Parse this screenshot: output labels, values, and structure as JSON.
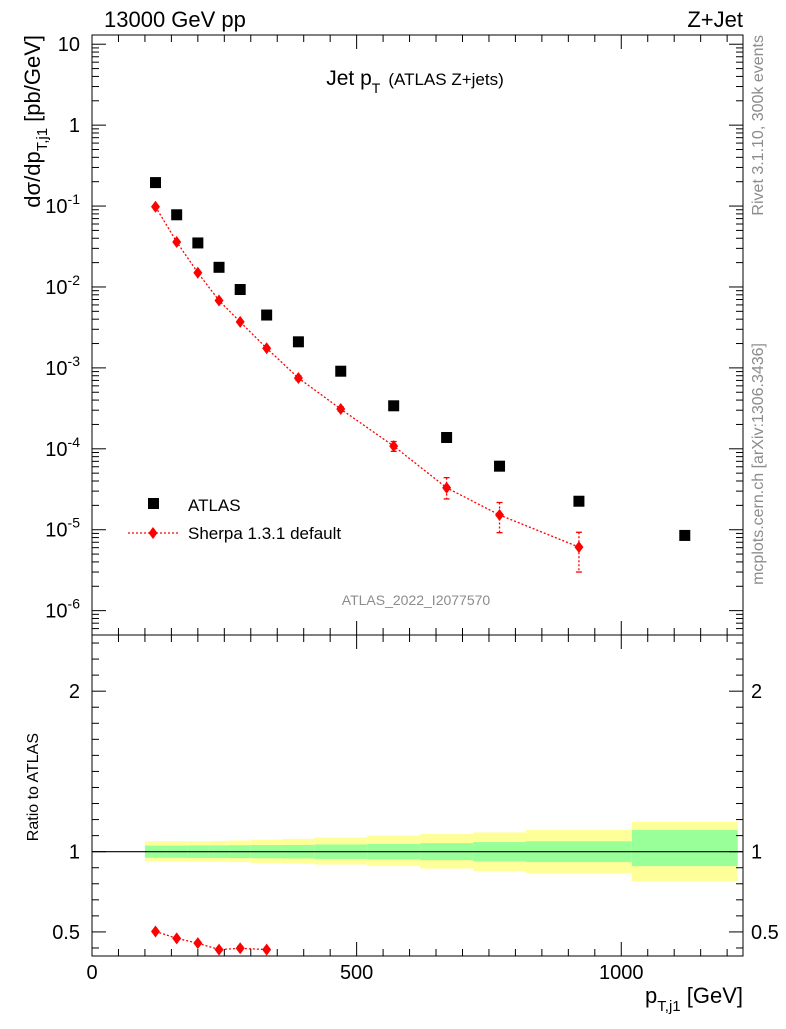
{
  "header": {
    "left": "13000 GeV pp",
    "right": "Z+Jet"
  },
  "side_labels": {
    "rivet": "Rivet 3.1.10,  300k events",
    "mcplots": "mcplots.cern.ch [arXiv:1306.3436]"
  },
  "watermark": "ATLAS_2022_I2077570",
  "colors": {
    "data": "#000000",
    "mc": "#ff0000",
    "band_inner": "#99ff99",
    "band_outer": "#ffff99",
    "side_text": "#8c8c8c"
  },
  "chart_data": [
    {
      "type": "scatter",
      "panel": "main",
      "title_main": "Jet p",
      "title_sub": "T",
      "title_suffix": "(ATLAS Z+jets)",
      "ylabel": "dσ/dp",
      "ylabel_sub": "T,j1",
      "ylabel_suffix": " [pb/GeV]",
      "yscale": "log",
      "ylim": [
        5e-07,
        13
      ],
      "xlim": [
        0,
        1230
      ],
      "y_tick_labels": [
        {
          "base": "10",
          "exp": "-6",
          "value": 1e-06
        },
        {
          "base": "10",
          "exp": "-5",
          "value": 1e-05
        },
        {
          "base": "10",
          "exp": "-4",
          "value": 0.0001
        },
        {
          "base": "10",
          "exp": "-3",
          "value": 0.001
        },
        {
          "base": "10",
          "exp": "-2",
          "value": 0.01
        },
        {
          "base": "10",
          "exp": "-1",
          "value": 0.1
        },
        {
          "base": "1",
          "exp": "",
          "value": 1
        },
        {
          "base": "10",
          "exp": "",
          "value": 10
        }
      ],
      "legend_position": "bottom-left",
      "series": [
        {
          "name": "ATLAS",
          "marker": "square",
          "color": "#000000",
          "x": [
            120,
            160,
            200,
            240,
            280,
            330,
            390,
            470,
            570,
            670,
            770,
            920,
            1120
          ],
          "y": [
            0.195,
            0.078,
            0.035,
            0.0175,
            0.0093,
            0.0045,
            0.0021,
            0.00091,
            0.00034,
            0.000138,
            6.1e-05,
            2.25e-05,
            8.5e-06
          ]
        },
        {
          "name": "Sherpa 1.3.1 default",
          "marker": "diamond",
          "line": "dotted",
          "color": "#ff0000",
          "x": [
            120,
            160,
            200,
            240,
            280,
            330,
            390,
            470,
            570,
            670,
            770,
            920
          ],
          "y": [
            0.098,
            0.036,
            0.015,
            0.0068,
            0.0037,
            0.00175,
            0.00075,
            0.00031,
            0.000108,
            3.3e-05,
            1.52e-05,
            6.1e-06
          ],
          "err_low": [
            0.0,
            0.0,
            0.0,
            0.0,
            0.0,
            0.0,
            5e-05,
            2e-05,
            1.5e-05,
            9e-06,
            6e-06,
            3.1e-06
          ],
          "err_high": [
            0.0,
            0.0,
            0.0,
            0.0,
            0.0,
            0.0,
            5e-05,
            2e-05,
            1.5e-05,
            1.1e-05,
            6.5e-06,
            3.2e-06
          ]
        }
      ]
    },
    {
      "type": "scatter",
      "panel": "ratio",
      "ylabel": "Ratio to ATLAS",
      "xlabel": "p",
      "xlabel_sub": "T,j1",
      "xlabel_suffix": " [GeV]",
      "xlim": [
        0,
        1230
      ],
      "ylim": [
        0.35,
        2.35
      ],
      "x_ticks": [
        0,
        500,
        1000
      ],
      "y_ticks": [
        0.5,
        1,
        2
      ],
      "reference_line": 1,
      "uncertainty_band": {
        "edges": [
          100,
          140,
          180,
          220,
          260,
          300,
          360,
          420,
          520,
          620,
          720,
          820,
          1020,
          1220
        ],
        "inner_low": [
          0.962,
          0.962,
          0.961,
          0.961,
          0.96,
          0.959,
          0.958,
          0.955,
          0.952,
          0.947,
          0.94,
          0.935,
          0.91
        ],
        "inner_high": [
          1.038,
          1.038,
          1.039,
          1.039,
          1.04,
          1.041,
          1.042,
          1.045,
          1.048,
          1.053,
          1.06,
          1.065,
          1.135
        ],
        "outer_low": [
          0.94,
          0.94,
          0.938,
          0.937,
          0.935,
          0.93,
          0.925,
          0.92,
          0.91,
          0.895,
          0.88,
          0.865,
          0.815
        ],
        "outer_high": [
          1.065,
          1.065,
          1.066,
          1.067,
          1.07,
          1.075,
          1.08,
          1.088,
          1.1,
          1.11,
          1.12,
          1.135,
          1.185
        ]
      },
      "series": [
        {
          "name": "Sherpa 1.3.1 default",
          "marker": "diamond",
          "line": "dotted",
          "color": "#ff0000",
          "x": [
            120,
            160,
            200,
            240,
            280,
            330
          ],
          "y": [
            0.503,
            0.46,
            0.43,
            0.39,
            0.398,
            0.39
          ],
          "err": [
            0.0,
            0.0,
            0.0,
            0.0,
            0.012,
            0.0
          ]
        }
      ]
    }
  ]
}
